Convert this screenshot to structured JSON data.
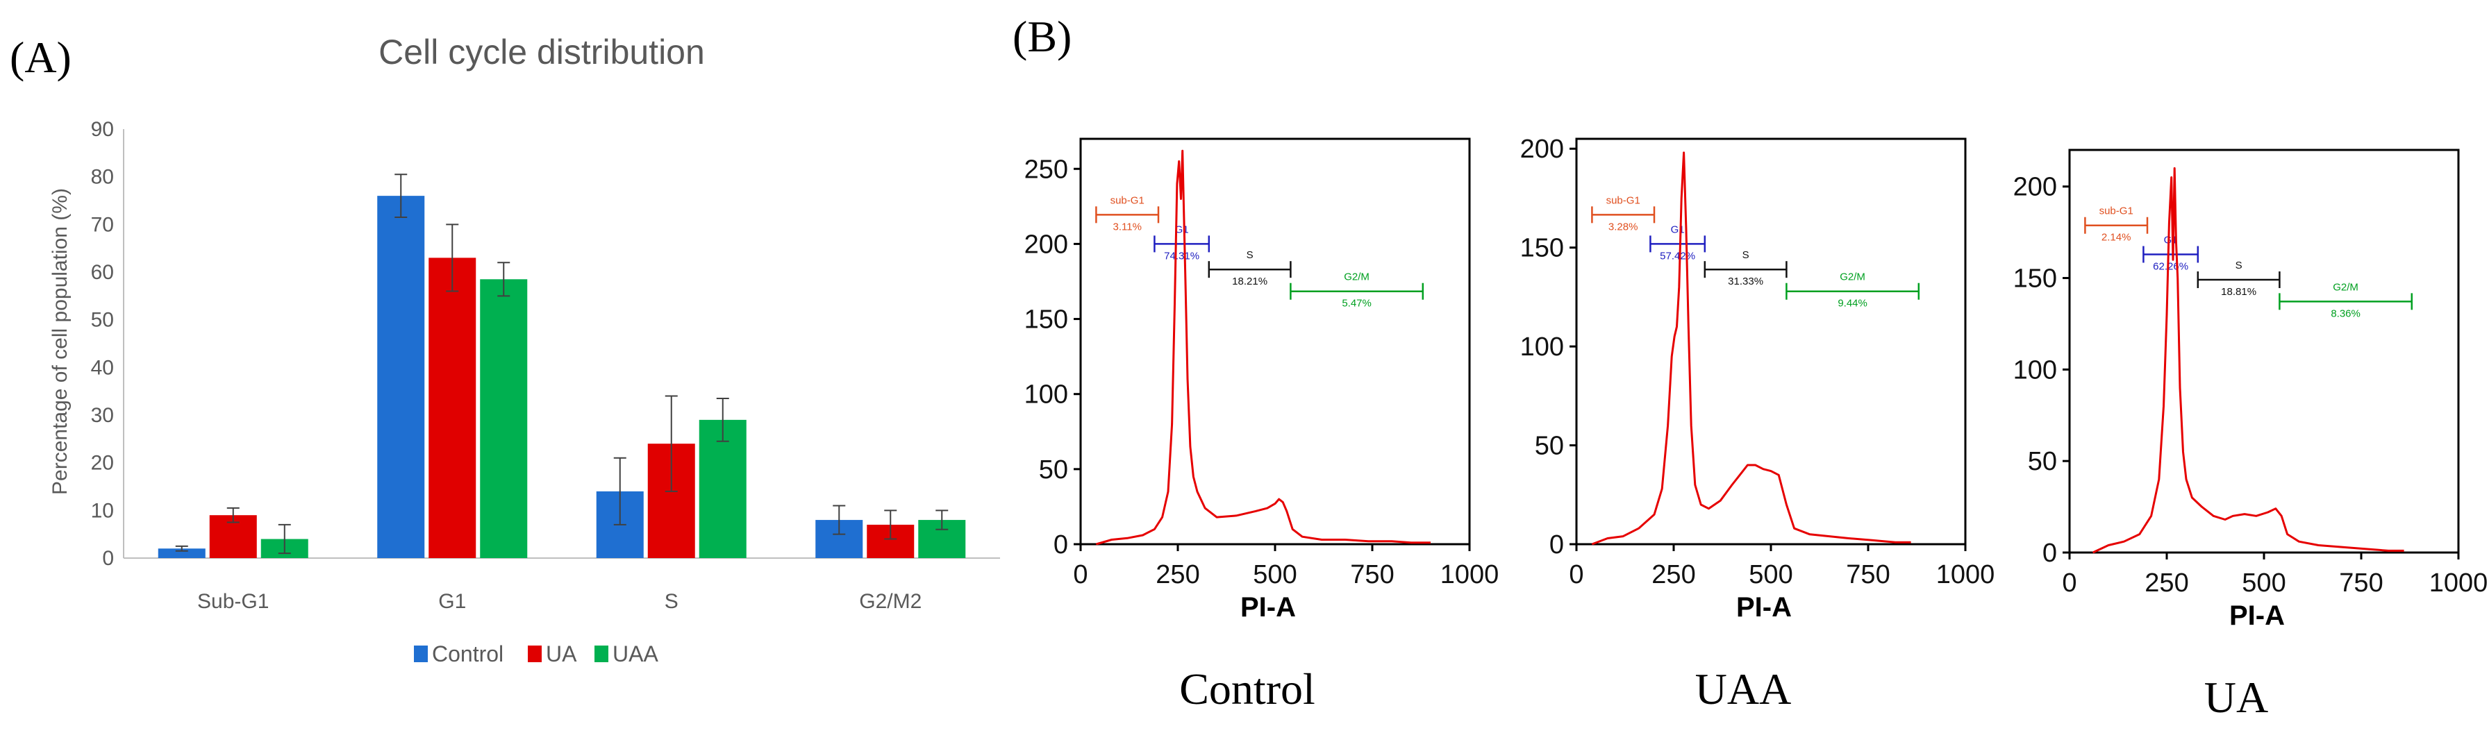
{
  "panels": {
    "a_label": "(A)",
    "b_label": "(B)"
  },
  "chart_data": [
    {
      "type": "bar",
      "title": "Cell cycle distribution",
      "ylabel": "Percentage of cell population (%)",
      "xlabel": "",
      "ylim": [
        0,
        90
      ],
      "yticks": [
        0,
        10,
        20,
        30,
        40,
        50,
        60,
        70,
        80,
        90
      ],
      "categories": [
        "Sub-G1",
        "G1",
        "S",
        "G2/M2"
      ],
      "series": [
        {
          "name": "Control",
          "color": "#1f6fd1",
          "values": [
            2,
            76,
            14,
            8
          ],
          "errors": [
            0.5,
            4.5,
            7,
            3
          ]
        },
        {
          "name": "UA",
          "color": "#e00000",
          "values": [
            9,
            63,
            24,
            7
          ],
          "errors": [
            1.5,
            7,
            10,
            3
          ]
        },
        {
          "name": "UAA",
          "color": "#00b050",
          "values": [
            4,
            58.5,
            29,
            8
          ],
          "errors": [
            3,
            3.5,
            4.5,
            2
          ]
        }
      ],
      "legend_position": "bottom"
    },
    {
      "type": "line",
      "caption": "Control",
      "xlabel": "PI-A",
      "xlim": [
        0,
        1000
      ],
      "xticks": [
        0,
        250,
        500,
        750,
        1000
      ],
      "ylim": [
        0,
        270
      ],
      "yticks": [
        0,
        50,
        100,
        150,
        200,
        250
      ],
      "color": "#e60000",
      "x": [
        40,
        80,
        120,
        160,
        190,
        210,
        225,
        235,
        242,
        248,
        253,
        258,
        262,
        266,
        270,
        275,
        282,
        290,
        300,
        320,
        350,
        400,
        450,
        480,
        500,
        510,
        520,
        530,
        545,
        570,
        620,
        680,
        740,
        800,
        850,
        900
      ],
      "y": [
        0,
        3,
        4,
        6,
        10,
        18,
        35,
        80,
        160,
        240,
        255,
        230,
        262,
        215,
        170,
        110,
        65,
        45,
        35,
        24,
        18,
        19,
        22,
        24,
        27,
        30,
        28,
        22,
        10,
        5,
        3,
        3,
        2,
        2,
        1,
        1
      ],
      "gates": [
        {
          "label": "sub-G1",
          "value": "3.11%",
          "color": "#e05020"
        },
        {
          "label": "G1",
          "value": "74.31%",
          "color": "#2020c0"
        },
        {
          "label": "S",
          "value": "18.21%",
          "color": "#111111"
        },
        {
          "label": "G2/M",
          "value": "5.47%",
          "color": "#00a020"
        }
      ]
    },
    {
      "type": "line",
      "caption": "UAA",
      "xlabel": "PI-A",
      "xlim": [
        0,
        1000
      ],
      "xticks": [
        0,
        250,
        500,
        750,
        1000
      ],
      "ylim": [
        0,
        205
      ],
      "yticks": [
        0,
        50,
        100,
        150,
        200
      ],
      "color": "#e60000",
      "x": [
        40,
        80,
        120,
        160,
        200,
        220,
        235,
        245,
        252,
        258,
        264,
        270,
        276,
        282,
        288,
        295,
        305,
        320,
        340,
        370,
        400,
        420,
        440,
        460,
        480,
        500,
        520,
        540,
        560,
        600,
        650,
        700,
        760,
        820,
        860
      ],
      "y": [
        0,
        3,
        4,
        8,
        15,
        28,
        60,
        95,
        105,
        110,
        130,
        175,
        198,
        160,
        110,
        60,
        30,
        20,
        18,
        22,
        30,
        35,
        40,
        40,
        38,
        37,
        35,
        20,
        8,
        5,
        4,
        3,
        2,
        1,
        1
      ],
      "gates": [
        {
          "label": "sub-G1",
          "value": "3.28%",
          "color": "#e05020"
        },
        {
          "label": "G1",
          "value": "57.42%",
          "color": "#2020c0"
        },
        {
          "label": "S",
          "value": "31.33%",
          "color": "#111111"
        },
        {
          "label": "G2/M",
          "value": "9.44%",
          "color": "#00a020"
        }
      ]
    },
    {
      "type": "line",
      "caption": "UA",
      "xlabel": "PI-A",
      "xlim": [
        0,
        1000
      ],
      "xticks": [
        0,
        250,
        500,
        750,
        1000
      ],
      "ylim": [
        0,
        220
      ],
      "yticks": [
        0,
        50,
        100,
        150,
        200
      ],
      "color": "#e60000",
      "x": [
        60,
        100,
        140,
        180,
        210,
        230,
        242,
        250,
        256,
        262,
        266,
        270,
        274,
        278,
        284,
        292,
        300,
        315,
        340,
        370,
        400,
        420,
        450,
        480,
        510,
        530,
        545,
        560,
        590,
        640,
        700,
        760,
        820,
        860
      ],
      "y": [
        0,
        4,
        6,
        10,
        20,
        40,
        80,
        130,
        180,
        205,
        160,
        210,
        170,
        150,
        90,
        55,
        40,
        30,
        25,
        20,
        18,
        20,
        21,
        20,
        22,
        24,
        20,
        10,
        6,
        4,
        3,
        2,
        1,
        1
      ],
      "gates": [
        {
          "label": "sub-G1",
          "value": "2.14%",
          "color": "#e05020"
        },
        {
          "label": "G1",
          "value": "62.26%",
          "color": "#2020c0"
        },
        {
          "label": "S",
          "value": "18.81%",
          "color": "#111111"
        },
        {
          "label": "G2/M",
          "value": "8.36%",
          "color": "#00a020"
        }
      ]
    }
  ]
}
